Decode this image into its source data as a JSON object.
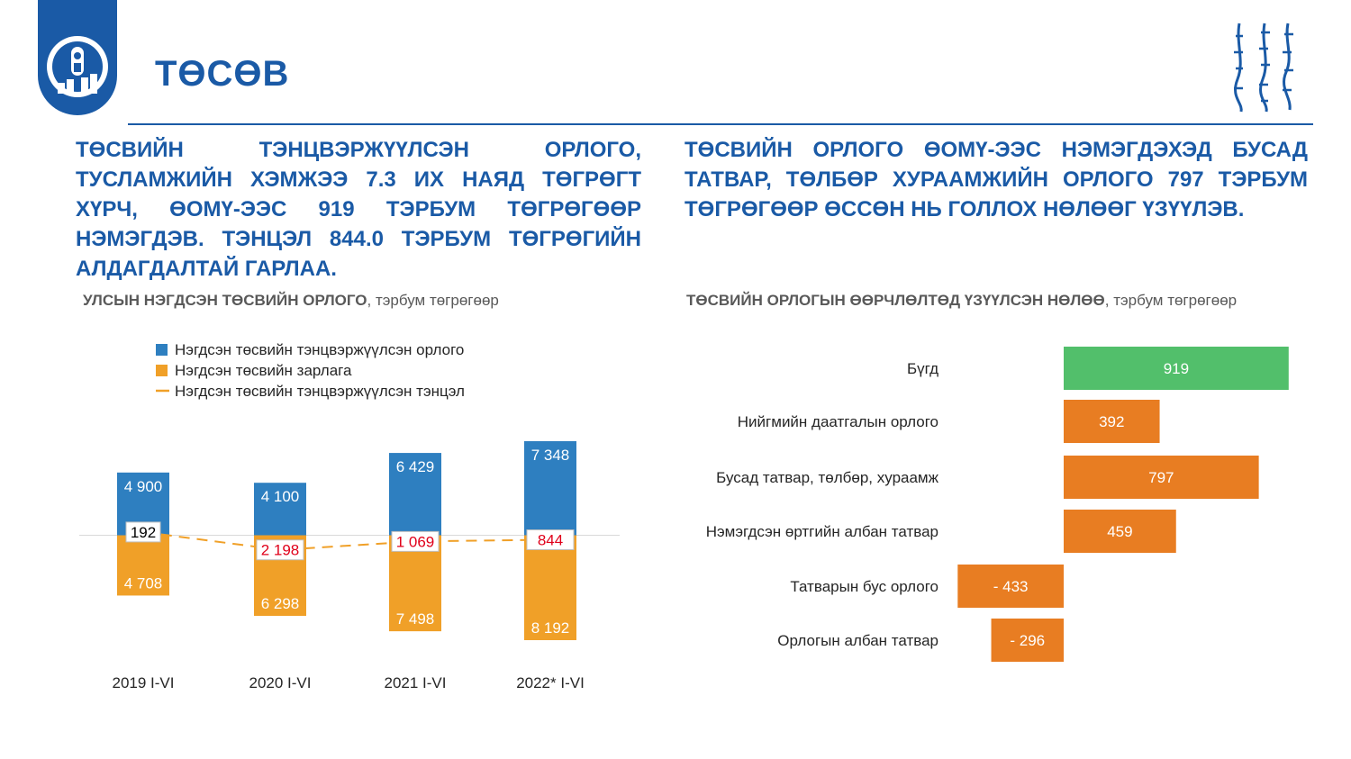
{
  "header": {
    "title": "ТӨСӨВ"
  },
  "colors": {
    "brand_blue": "#1a5aa6",
    "revenue_blue": "#2e7fc0",
    "expense_orange": "#f0a028",
    "positive_green": "#52bf6b",
    "impact_orange": "#e87d22",
    "deficit_red": "#e0001a"
  },
  "headline_left": "ТӨСВИЙН ТЭНЦВЭРЖҮҮЛСЭН ОРЛОГО, ТУСЛАМЖИЙН ХЭМЖЭЭ 7.3 ИХ НАЯД ТӨГРӨГТ ХҮРЧ, ӨОМҮ-ЭЭС 919 ТЭРБУМ ТӨГРӨГӨӨР НЭМЭГДЭВ. ТЭНЦЭЛ 844.0 ТЭРБУМ ТӨГРӨГИЙН АЛДАГДАЛТАЙ ГАРЛАА.",
  "headline_right": "ТӨСВИЙН ОРЛОГО ӨОМҮ-ЭЭС НЭМЭГДЭХЭД БУСАД ТАТВАР, ТӨЛБӨР ХУРААМЖИЙН ОРЛОГО 797 ТЭРБУМ ТӨГРӨГӨӨР ӨССӨН НЬ ГОЛЛОХ НӨЛӨӨГ ҮЗҮҮЛЭВ.",
  "chart_data": [
    {
      "type": "bar",
      "title": "УЛСЫН НЭГДСЭН ТӨСВИЙН ОРЛОГО",
      "subtitle": ", тэрбум төгрөгөөр",
      "categories": [
        "2019 I-VI",
        "2020 I-VI",
        "2021 I-VI",
        "2022* I-VI"
      ],
      "series": [
        {
          "name": "Нэгдсэн төсвийн тэнцвэржүүлсэн  орлого",
          "values": [
            4900,
            4100,
            6429,
            7348
          ],
          "labels": [
            "4 900",
            "4 100",
            "6 429",
            "7 348"
          ],
          "color": "#2e7fc0"
        },
        {
          "name": "Нэгдсэн төсвийн зарлага",
          "values": [
            4708,
            6298,
            7498,
            8192
          ],
          "labels": [
            "4 708",
            "6 298",
            "7 498",
            "8 192"
          ],
          "color": "#f0a028"
        },
        {
          "name": "Нэгдсэн төсвийн тэнцвэржүүлсэн  тэнцэл",
          "values": [
            192,
            -2198,
            -1069,
            -844
          ],
          "labels": [
            "192",
            "2 198",
            "1 069",
            "844"
          ],
          "color": "#f0a028"
        }
      ],
      "legend": "top",
      "grid": false
    },
    {
      "type": "bar",
      "orientation": "horizontal",
      "title": "ТӨСВИЙН ОРЛОГЫН ӨӨРЧЛӨЛТӨД ҮЗҮҮЛСЭН НӨЛӨӨ",
      "subtitle": ", тэрбум төгрөгөөр",
      "categories": [
        "Бүгд",
        "Нийгмийн даатгалын орлого",
        "Бусад татвар, төлбөр, хураамж",
        "Нэмэгдсэн өртгийн албан татвар",
        "Татварын бус орлого",
        "Орлогын албан татвар"
      ],
      "values": [
        919,
        392,
        797,
        459,
        -433,
        -296
      ],
      "labels": [
        "919",
        "392",
        "797",
        "459",
        "- 433",
        "- 296"
      ],
      "legend": "none",
      "grid": false
    }
  ]
}
